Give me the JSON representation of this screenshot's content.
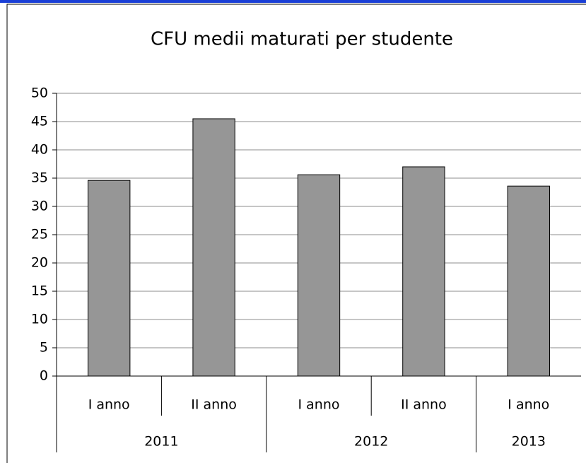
{
  "chart_data": {
    "type": "bar",
    "title": "CFU medii maturati per studente",
    "groups": [
      {
        "name": "2011",
        "categories": [
          "I anno",
          "II anno"
        ],
        "values": [
          34.6,
          45.5
        ]
      },
      {
        "name": "2012",
        "categories": [
          "I anno",
          "II anno"
        ],
        "values": [
          35.6,
          37
        ]
      },
      {
        "name": "2013",
        "categories": [
          "I anno"
        ],
        "values": [
          33.6
        ]
      }
    ],
    "color": "#969696",
    "ylim": [
      0,
      50
    ],
    "yticks": [
      0,
      5,
      10,
      15,
      20,
      25,
      30,
      35,
      40,
      45,
      50
    ],
    "grid": true
  }
}
